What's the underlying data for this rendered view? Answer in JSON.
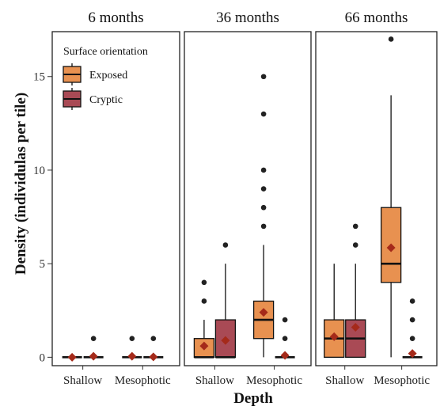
{
  "chart_data": {
    "type": "box",
    "facets": [
      {
        "title": "6 months",
        "groups": [
          {
            "depth": "Shallow",
            "orientation": "Exposed",
            "stats": {
              "min": 0,
              "q1": 0,
              "median": 0,
              "q3": 0,
              "max": 0,
              "mean": 0
            },
            "outliers": []
          },
          {
            "depth": "Shallow",
            "orientation": "Cryptic",
            "stats": {
              "min": 0,
              "q1": 0,
              "median": 0,
              "q3": 0,
              "max": 0,
              "mean": 0.05
            },
            "outliers": [
              1
            ]
          },
          {
            "depth": "Mesophotic",
            "orientation": "Exposed",
            "stats": {
              "min": 0,
              "q1": 0,
              "median": 0,
              "q3": 0,
              "max": 0,
              "mean": 0.05
            },
            "outliers": [
              1
            ]
          },
          {
            "depth": "Mesophotic",
            "orientation": "Cryptic",
            "stats": {
              "min": 0,
              "q1": 0,
              "median": 0,
              "q3": 0,
              "max": 0,
              "mean": 0.02
            },
            "outliers": [
              1
            ]
          }
        ]
      },
      {
        "title": "36 months",
        "groups": [
          {
            "depth": "Shallow",
            "orientation": "Exposed",
            "stats": {
              "min": 0,
              "q1": 0,
              "median": 0,
              "q3": 1,
              "max": 2,
              "mean": 0.6
            },
            "outliers": [
              3,
              4
            ]
          },
          {
            "depth": "Shallow",
            "orientation": "Cryptic",
            "stats": {
              "min": 0,
              "q1": 0,
              "median": 0,
              "q3": 2,
              "max": 5,
              "mean": 0.9
            },
            "outliers": [
              6
            ]
          },
          {
            "depth": "Mesophotic",
            "orientation": "Exposed",
            "stats": {
              "min": 0,
              "q1": 1,
              "median": 2,
              "q3": 3,
              "max": 6,
              "mean": 2.4
            },
            "outliers": [
              7,
              8,
              9,
              10,
              13,
              15
            ]
          },
          {
            "depth": "Mesophotic",
            "orientation": "Cryptic",
            "stats": {
              "min": 0,
              "q1": 0,
              "median": 0,
              "q3": 0,
              "max": 0,
              "mean": 0.1
            },
            "outliers": [
              1,
              2
            ]
          }
        ]
      },
      {
        "title": "66 months",
        "groups": [
          {
            "depth": "Shallow",
            "orientation": "Exposed",
            "stats": {
              "min": 0,
              "q1": 0,
              "median": 1,
              "q3": 2,
              "max": 5,
              "mean": 1.1
            },
            "outliers": []
          },
          {
            "depth": "Shallow",
            "orientation": "Cryptic",
            "stats": {
              "min": 0,
              "q1": 0,
              "median": 1,
              "q3": 2,
              "max": 5,
              "mean": 1.6
            },
            "outliers": [
              6,
              7
            ]
          },
          {
            "depth": "Mesophotic",
            "orientation": "Exposed",
            "stats": {
              "min": 0,
              "q1": 4,
              "median": 5,
              "q3": 8,
              "max": 14,
              "mean": 5.85
            },
            "outliers": [
              17
            ]
          },
          {
            "depth": "Mesophotic",
            "orientation": "Cryptic",
            "stats": {
              "min": 0,
              "q1": 0,
              "median": 0,
              "q3": 0,
              "max": 0,
              "mean": 0.2
            },
            "outliers": [
              1,
              2,
              3
            ]
          }
        ]
      }
    ],
    "categories": [
      "Shallow",
      "Mesophotic"
    ],
    "xlabel": "Depth",
    "ylabel": "Density (individulas per tile)",
    "yticks": [
      0,
      5,
      10,
      15
    ],
    "ylim": [
      -0.45,
      17.4
    ],
    "legend": {
      "title": "Surface orientation",
      "placement": "top-left",
      "entries": [
        {
          "name": "Exposed",
          "color": "#e89150"
        },
        {
          "name": "Cryptic",
          "color": "#a94a55"
        }
      ]
    },
    "mean_marker_color": "#a52a1a",
    "outlier_color": "#222222",
    "grid": false
  }
}
